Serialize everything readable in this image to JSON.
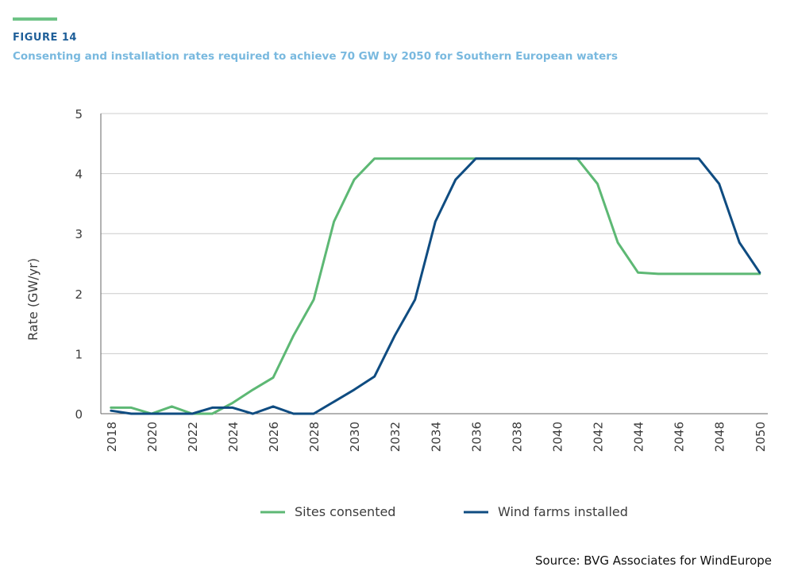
{
  "header": {
    "figure_label": "FIGURE 14",
    "title": "Consenting and installation rates required to achieve 70 GW by 2050 for Southern European waters"
  },
  "source": "Source: BVG Associates for WindEurope",
  "colors": {
    "accent": "#6ec386",
    "sites": "#5db874",
    "wind": "#0f4c81",
    "grid": "#cccccc",
    "axis": "#666666"
  },
  "chart_data": {
    "type": "line",
    "ylabel": "Rate (GW/yr)",
    "xlabel": "",
    "ylim": [
      0,
      5
    ],
    "yticks": [
      0,
      1,
      2,
      3,
      4,
      5
    ],
    "xlim": [
      2017.5,
      2050.4
    ],
    "xticks": [
      2018,
      2020,
      2022,
      2024,
      2026,
      2028,
      2030,
      2032,
      2034,
      2036,
      2038,
      2040,
      2042,
      2044,
      2046,
      2048,
      2050
    ],
    "grid": "horizontal",
    "legend_position": "bottom",
    "x": [
      2018,
      2019,
      2020,
      2021,
      2022,
      2023,
      2024,
      2025,
      2026,
      2027,
      2028,
      2029,
      2030,
      2031,
      2032,
      2033,
      2034,
      2035,
      2036,
      2037,
      2038,
      2039,
      2040,
      2041,
      2042,
      2043,
      2044,
      2045,
      2046,
      2047,
      2048,
      2049,
      2050
    ],
    "series": [
      {
        "name": "Sites consented",
        "color": "#5db874",
        "values": [
          0.1,
          0.1,
          0.0,
          0.12,
          0.0,
          0.0,
          0.18,
          0.4,
          0.6,
          1.3,
          1.9,
          3.2,
          3.9,
          4.25,
          4.25,
          4.25,
          4.25,
          4.25,
          4.25,
          4.25,
          4.25,
          4.25,
          4.25,
          4.25,
          3.83,
          2.85,
          2.35,
          2.33,
          2.33,
          2.33,
          2.33,
          2.33,
          2.33
        ]
      },
      {
        "name": "Wind farms installed",
        "color": "#0f4c81",
        "values": [
          0.05,
          0.0,
          0.0,
          0.0,
          0.0,
          0.1,
          0.1,
          0.0,
          0.12,
          0.0,
          0.0,
          0.2,
          0.4,
          0.62,
          1.3,
          1.9,
          3.2,
          3.9,
          4.25,
          4.25,
          4.25,
          4.25,
          4.25,
          4.25,
          4.25,
          4.25,
          4.25,
          4.25,
          4.25,
          4.25,
          3.83,
          2.85,
          2.35
        ]
      }
    ]
  }
}
